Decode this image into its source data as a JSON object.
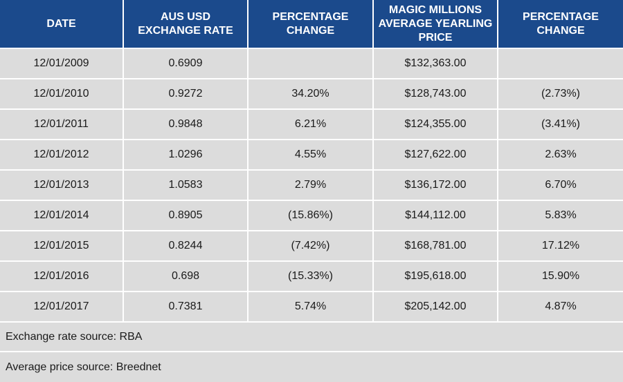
{
  "headers": [
    "DATE",
    "AUS USD EXCHANGE RATE",
    "PERCENTAGE CHANGE",
    "MAGIC MILLIONS AVERAGE YEARLING PRICE",
    "PERCENTAGE CHANGE"
  ],
  "rows": [
    [
      "12/01/2009",
      "0.6909",
      "",
      "$132,363.00",
      ""
    ],
    [
      "12/01/2010",
      "0.9272",
      "34.20%",
      "$128,743.00",
      "(2.73%)"
    ],
    [
      "12/01/2011",
      "0.9848",
      "6.21%",
      "$124,355.00",
      "(3.41%)"
    ],
    [
      "12/01/2012",
      "1.0296",
      "4.55%",
      "$127,622.00",
      "2.63%"
    ],
    [
      "12/01/2013",
      "1.0583",
      "2.79%",
      "$136,172.00",
      "6.70%"
    ],
    [
      "12/01/2014",
      "0.8905",
      "(15.86%)",
      "$144,112.00",
      "5.83%"
    ],
    [
      "12/01/2015",
      "0.8244",
      "(7.42%)",
      "$168,781.00",
      "17.12%"
    ],
    [
      "12/01/2016",
      "0.698",
      "(15.33%)",
      "$195,618.00",
      "15.90%"
    ],
    [
      "12/01/2017",
      "0.7381",
      "5.74%",
      "$205,142.00",
      "4.87%"
    ]
  ],
  "footnotes": {
    "exchange_source": "Exchange rate source: RBA",
    "price_source": "Average price source: Breednet"
  },
  "colors": {
    "header_background": "#1b4a8c",
    "header_text": "#ffffff",
    "cell_background": "#dcdcdc",
    "grid_lines": "#ffffff"
  }
}
